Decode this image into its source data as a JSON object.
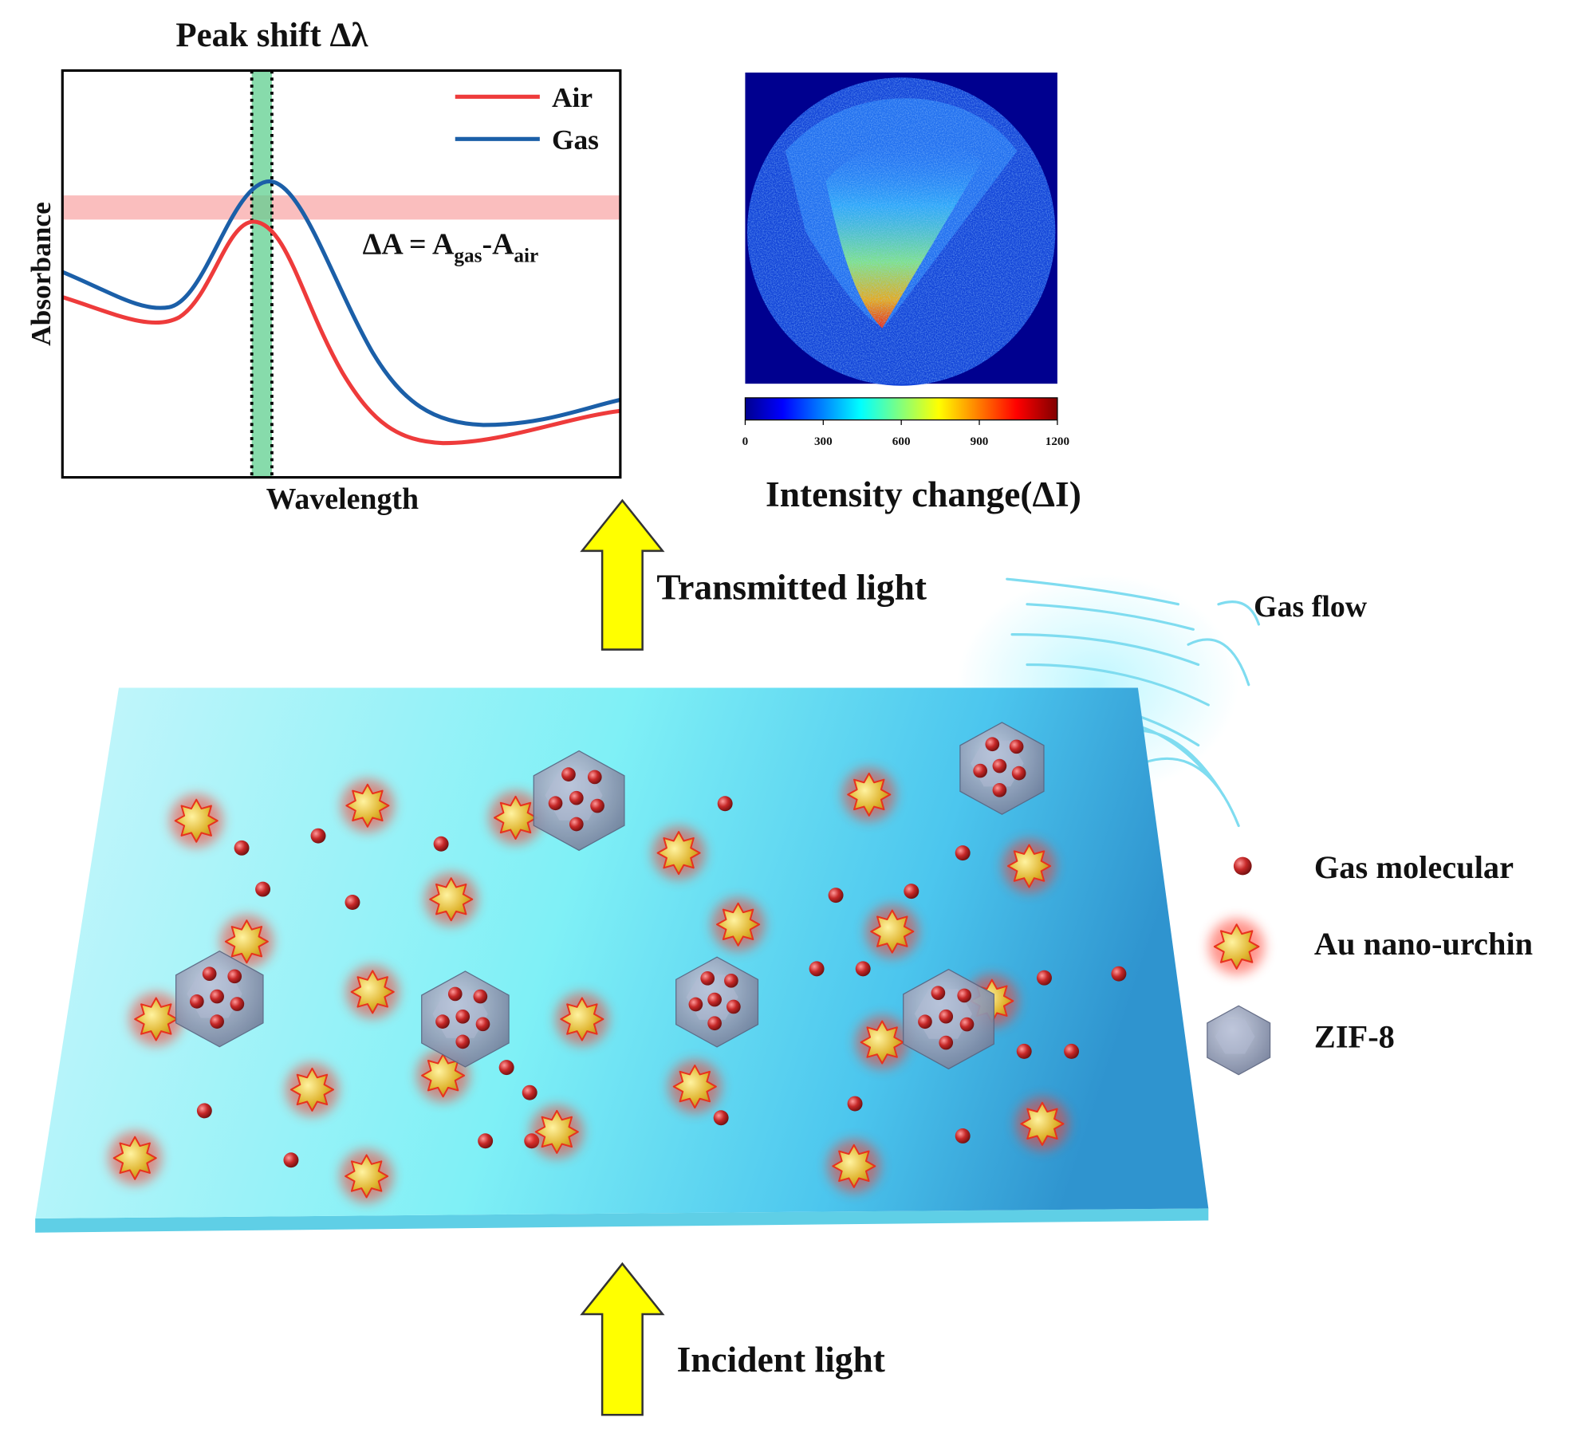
{
  "spectrum": {
    "title": "Peak shift Δλ",
    "legend": [
      "Air",
      "Gas"
    ],
    "y_label": "Absorbance",
    "x_label": "Wavelength",
    "formula": {
      "lead": "ΔA = A",
      "sub1": "gas",
      "mid": "-A",
      "sub2": "air"
    }
  },
  "heatmap": {
    "colorbar_ticks": [
      0,
      300,
      600,
      900,
      1200
    ],
    "label": "Intensity change(ΔI)"
  },
  "labels": {
    "transmitted": "Transmitted light",
    "gas_flow": "Gas flow",
    "incident": "Incident light"
  },
  "legend": [
    "Gas molecular",
    "Au nano-urchin",
    "ZIF-8"
  ]
}
